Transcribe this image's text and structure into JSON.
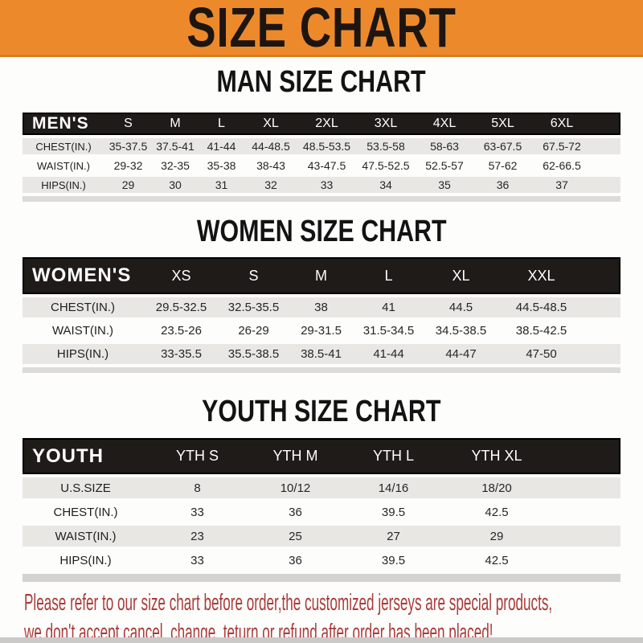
{
  "banner": {
    "title": "SIZE CHART",
    "bg_color": "#EC8A2B",
    "text_color": "#1D1511"
  },
  "sections": [
    {
      "id": "men",
      "heading": "MAN SIZE CHART",
      "table": {
        "corner_label": "MEN'S",
        "size_headers": [
          "S",
          "M",
          "L",
          "XL",
          "2XL",
          "3XL",
          "4XL",
          "5XL",
          "6XL"
        ],
        "rows": [
          {
            "label": "CHEST(IN.)",
            "values": [
              "35-37.5",
              "37.5-41",
              "41-44",
              "44-48.5",
              "48.5-53.5",
              "53.5-58",
              "58-63",
              "63-67.5",
              "67.5-72"
            ]
          },
          {
            "label": "WAIST(IN.)",
            "values": [
              "29-32",
              "32-35",
              "35-38",
              "38-43",
              "43-47.5",
              "47.5-52.5",
              "52.5-57",
              "57-62",
              "62-66.5"
            ]
          },
          {
            "label": "HIPS(IN.)",
            "values": [
              "29",
              "30",
              "31",
              "32",
              "33",
              "34",
              "35",
              "36",
              "37"
            ]
          }
        ]
      }
    },
    {
      "id": "women",
      "heading": "WOMEN SIZE CHART",
      "table": {
        "corner_label": "WOMEN'S",
        "size_headers": [
          "XS",
          "S",
          "M",
          "L",
          "XL",
          "XXL"
        ],
        "rows": [
          {
            "label": "CHEST(IN.)",
            "values": [
              "29.5-32.5",
              "32.5-35.5",
              "38",
              "41",
              "44.5",
              "44.5-48.5"
            ]
          },
          {
            "label": "WAIST(IN.)",
            "values": [
              "23.5-26",
              "26-29",
              "29-31.5",
              "31.5-34.5",
              "34.5-38.5",
              "38.5-42.5"
            ]
          },
          {
            "label": "HIPS(IN.)",
            "values": [
              "33-35.5",
              "35.5-38.5",
              "38.5-41",
              "41-44",
              "44-47",
              "47-50"
            ]
          }
        ]
      }
    },
    {
      "id": "youth",
      "heading": "YOUTH SIZE CHART",
      "table": {
        "corner_label": "YOUTH",
        "size_headers": [
          "YTH S",
          "YTH M",
          "YTH L",
          "YTH XL"
        ],
        "rows": [
          {
            "label": "U.S.SIZE",
            "values": [
              "8",
              "10/12",
              "14/16",
              "18/20"
            ]
          },
          {
            "label": "CHEST(IN.)",
            "values": [
              "33",
              "36",
              "39.5",
              "42.5"
            ]
          },
          {
            "label": "WAIST(IN.)",
            "values": [
              "23",
              "25",
              "27",
              "29"
            ]
          },
          {
            "label": "HIPS(IN.)",
            "values": [
              "33",
              "36",
              "39.5",
              "42.5"
            ]
          }
        ]
      }
    }
  ],
  "note": {
    "lines": [
      "Please refer to our size chart before order,the customized jerseys are special products,",
      "we don't accept cancel, change, teturn or refund after order has been placed!"
    ],
    "color": "#A93B38"
  }
}
